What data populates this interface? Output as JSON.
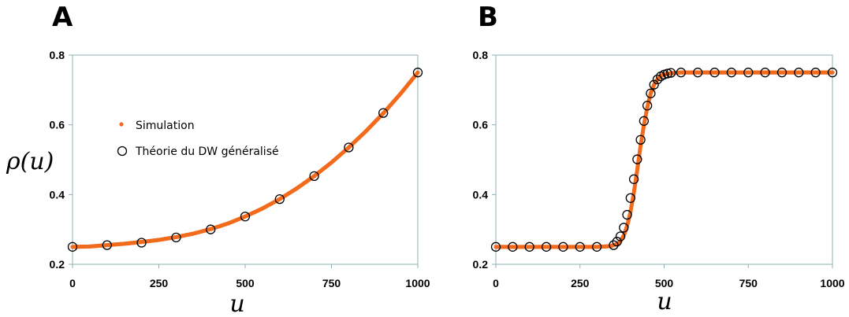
{
  "chart_data": [
    {
      "type": "line",
      "panel_label": "A",
      "xlabel": "u",
      "ylabel": "ρ(u)",
      "xlim": [
        0,
        1000
      ],
      "ylim": [
        0.2,
        0.8
      ],
      "xticks": [
        "0",
        "250",
        "500",
        "750",
        "1000"
      ],
      "yticks": [
        "0.2",
        "0.4",
        "0.6",
        "0.8"
      ],
      "grid": false,
      "legend": {
        "placement": "upper-left",
        "entries": [
          {
            "name": "Simulation",
            "marker": "dot",
            "color": "#f26b1d"
          },
          {
            "name": "Théorie du DW généralisé",
            "marker": "open-circle",
            "color": "#000000"
          }
        ]
      },
      "series": [
        {
          "name": "Simulation",
          "style": "dense-dots",
          "x": [
            0,
            50,
            100,
            150,
            200,
            250,
            300,
            350,
            400,
            450,
            500,
            550,
            600,
            650,
            700,
            750,
            800,
            850,
            900,
            950,
            1000
          ],
          "y": [
            0.25,
            0.251,
            0.255,
            0.259,
            0.264,
            0.27,
            0.278,
            0.288,
            0.301,
            0.317,
            0.337,
            0.36,
            0.387,
            0.418,
            0.453,
            0.492,
            0.535,
            0.582,
            0.633,
            0.689,
            0.75
          ]
        },
        {
          "name": "Théorie du DW généralisé",
          "style": "open-circles",
          "x": [
            0,
            100,
            200,
            300,
            400,
            500,
            600,
            700,
            800,
            900,
            1000
          ],
          "y": [
            0.25,
            0.255,
            0.262,
            0.277,
            0.3,
            0.337,
            0.387,
            0.453,
            0.535,
            0.634,
            0.75
          ]
        }
      ]
    },
    {
      "type": "line",
      "panel_label": "B",
      "xlabel": "u",
      "xlim": [
        0,
        1000
      ],
      "ylim": [
        0.2,
        0.8
      ],
      "xticks": [
        "0",
        "250",
        "500",
        "750",
        "1000"
      ],
      "yticks": [
        "0.2",
        "0.4",
        "0.6",
        "0.8"
      ],
      "grid": false,
      "series": [
        {
          "name": "Simulation",
          "style": "dense-dots",
          "x": [
            0,
            100,
            200,
            300,
            340,
            360,
            370,
            380,
            390,
            400,
            410,
            420,
            430,
            440,
            450,
            460,
            470,
            480,
            490,
            500,
            520,
            550,
            600,
            700,
            800,
            900,
            1000
          ],
          "y": [
            0.25,
            0.25,
            0.25,
            0.25,
            0.252,
            0.258,
            0.266,
            0.282,
            0.31,
            0.35,
            0.405,
            0.47,
            0.54,
            0.6,
            0.65,
            0.69,
            0.715,
            0.73,
            0.74,
            0.745,
            0.748,
            0.75,
            0.75,
            0.75,
            0.75,
            0.75,
            0.75
          ]
        },
        {
          "name": "Théorie du DW généralisé",
          "style": "open-circles",
          "x": [
            0,
            50,
            100,
            150,
            200,
            250,
            300,
            350,
            360,
            370,
            380,
            390,
            400,
            410,
            420,
            430,
            440,
            450,
            460,
            470,
            480,
            490,
            500,
            510,
            520,
            550,
            600,
            650,
            700,
            750,
            800,
            850,
            900,
            950,
            1000
          ],
          "y": [
            0.25,
            0.25,
            0.25,
            0.25,
            0.25,
            0.25,
            0.25,
            0.255,
            0.265,
            0.28,
            0.305,
            0.342,
            0.39,
            0.444,
            0.501,
            0.557,
            0.611,
            0.655,
            0.69,
            0.715,
            0.73,
            0.739,
            0.744,
            0.747,
            0.749,
            0.75,
            0.75,
            0.75,
            0.75,
            0.75,
            0.75,
            0.75,
            0.75,
            0.75,
            0.75
          ]
        }
      ]
    }
  ]
}
